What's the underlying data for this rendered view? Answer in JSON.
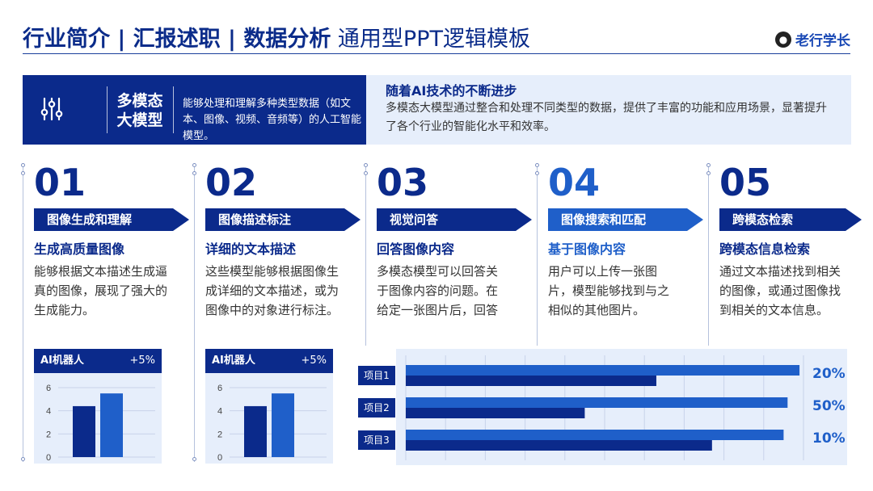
{
  "header": {
    "title_bold": "行业简介 | 汇报述职 | 数据分析",
    "title_light": "通用型PPT逻辑模板",
    "logo_text": "老行学长",
    "logo_icon": "bear-face-icon"
  },
  "banner": {
    "icon": "sliders-icon",
    "name_line1": "多模态",
    "name_line2": "大模型",
    "description": "能够处理和理解多种类型数据（如文本、图像、视频、音频等）的人工智能模型。",
    "right_title": "随着AI技术的不断进步",
    "right_body": "多模态大模型通过整合和处理不同类型的数据，提供了丰富的功能和应用场景，显著提升了各个行业的智能化水平和效率。"
  },
  "columns": [
    {
      "number": "01",
      "title": "图像生成和理解",
      "subtitle": "生成高质量图像",
      "body": "能够根据文本描述生成逼真的图像，展现了强大的生成能力。"
    },
    {
      "number": "02",
      "title": "图像描述标注",
      "subtitle": "详细的文本描述",
      "body": "这些模型能够根据图像生成详细的文本描述，或为图像中的对象进行标注。"
    },
    {
      "number": "03",
      "title": "视觉问答",
      "subtitle": "回答图像内容",
      "body": "多模态模型可以回答关于图像内容的问题。在给定一张图片后，回答"
    },
    {
      "number": "04",
      "title": "图像搜索和匹配",
      "subtitle": "基于图像内容",
      "body": "用户可以上传一张图片，模型能够找到与之相似的其他图片。"
    },
    {
      "number": "05",
      "title": "跨模态检索",
      "subtitle": "跨模态信息检索",
      "body": "通过文本描述找到相关的图像，或通过图像找到相关的文本信息。"
    }
  ],
  "colors": {
    "dark_blue": "#0b2a8b",
    "accent_blue": "#1f5fc9",
    "light_bg": "#e6eefb"
  },
  "chart_data": [
    {
      "type": "bar",
      "title": "AI机器人",
      "badge": "+5%",
      "categories": [
        "",
        ""
      ],
      "values": [
        4.4,
        5.5
      ],
      "yticks": [
        "6",
        "4",
        "2",
        "0"
      ],
      "ylim": [
        0,
        6
      ]
    },
    {
      "type": "bar",
      "title": "AI机器人",
      "badge": "+5%",
      "categories": [
        "",
        ""
      ],
      "values": [
        4.4,
        5.5
      ],
      "yticks": [
        "6",
        "4",
        "2",
        "0"
      ],
      "ylim": [
        0,
        6
      ]
    },
    {
      "type": "bar",
      "orientation": "horizontal",
      "categories": [
        "项目1",
        "项目2",
        "项目3"
      ],
      "value_labels": [
        "20%",
        "50%",
        "10%"
      ],
      "series": [
        {
          "values": [
            99,
            96,
            95
          ]
        },
        {
          "values": [
            63,
            45,
            77
          ]
        }
      ],
      "xlim": [
        0,
        100
      ]
    }
  ]
}
